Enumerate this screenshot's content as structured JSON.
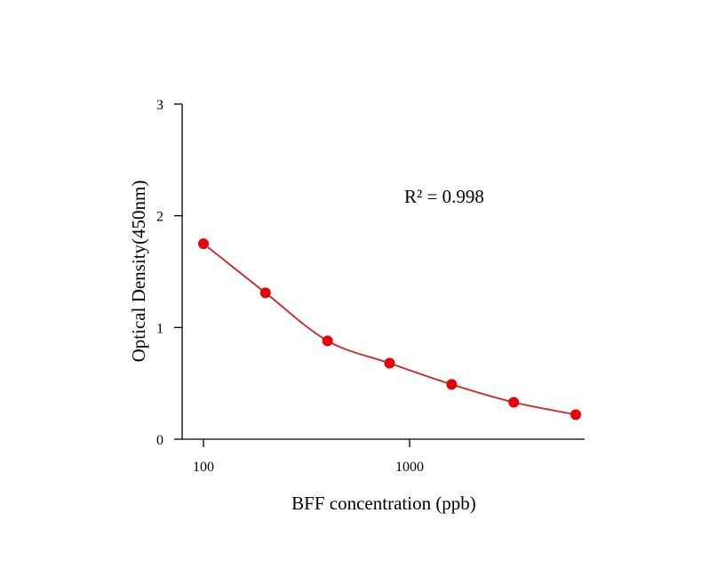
{
  "chart_data": {
    "type": "scatter",
    "title": "",
    "xlabel": "BFF concentration (ppb)",
    "ylabel": "Optical Density(450nm)",
    "x_scale": "log",
    "xlim": [
      80,
      7000
    ],
    "ylim": [
      0,
      3
    ],
    "x_ticks": [
      {
        "value": 100,
        "label": "100"
      },
      {
        "value": 1000,
        "label": "1000"
      }
    ],
    "y_ticks": [
      {
        "value": 0,
        "label": "0"
      },
      {
        "value": 1,
        "label": "1"
      },
      {
        "value": 2,
        "label": "2"
      },
      {
        "value": 3,
        "label": "3"
      }
    ],
    "grid": false,
    "series": [
      {
        "points": [
          {
            "x": 100,
            "y": 1.75
          },
          {
            "x": 200,
            "y": 1.31
          },
          {
            "x": 400,
            "y": 0.88
          },
          {
            "x": 800,
            "y": 0.68
          },
          {
            "x": 1600,
            "y": 0.49
          },
          {
            "x": 3200,
            "y": 0.33
          },
          {
            "x": 6400,
            "y": 0.22
          }
        ],
        "fit": "smooth-curve"
      }
    ],
    "annotations": [
      {
        "text": "R² = 0.998"
      }
    ],
    "colors": {
      "marker": "#e8000b",
      "curve": "#d42020",
      "axis": "#000000"
    }
  }
}
